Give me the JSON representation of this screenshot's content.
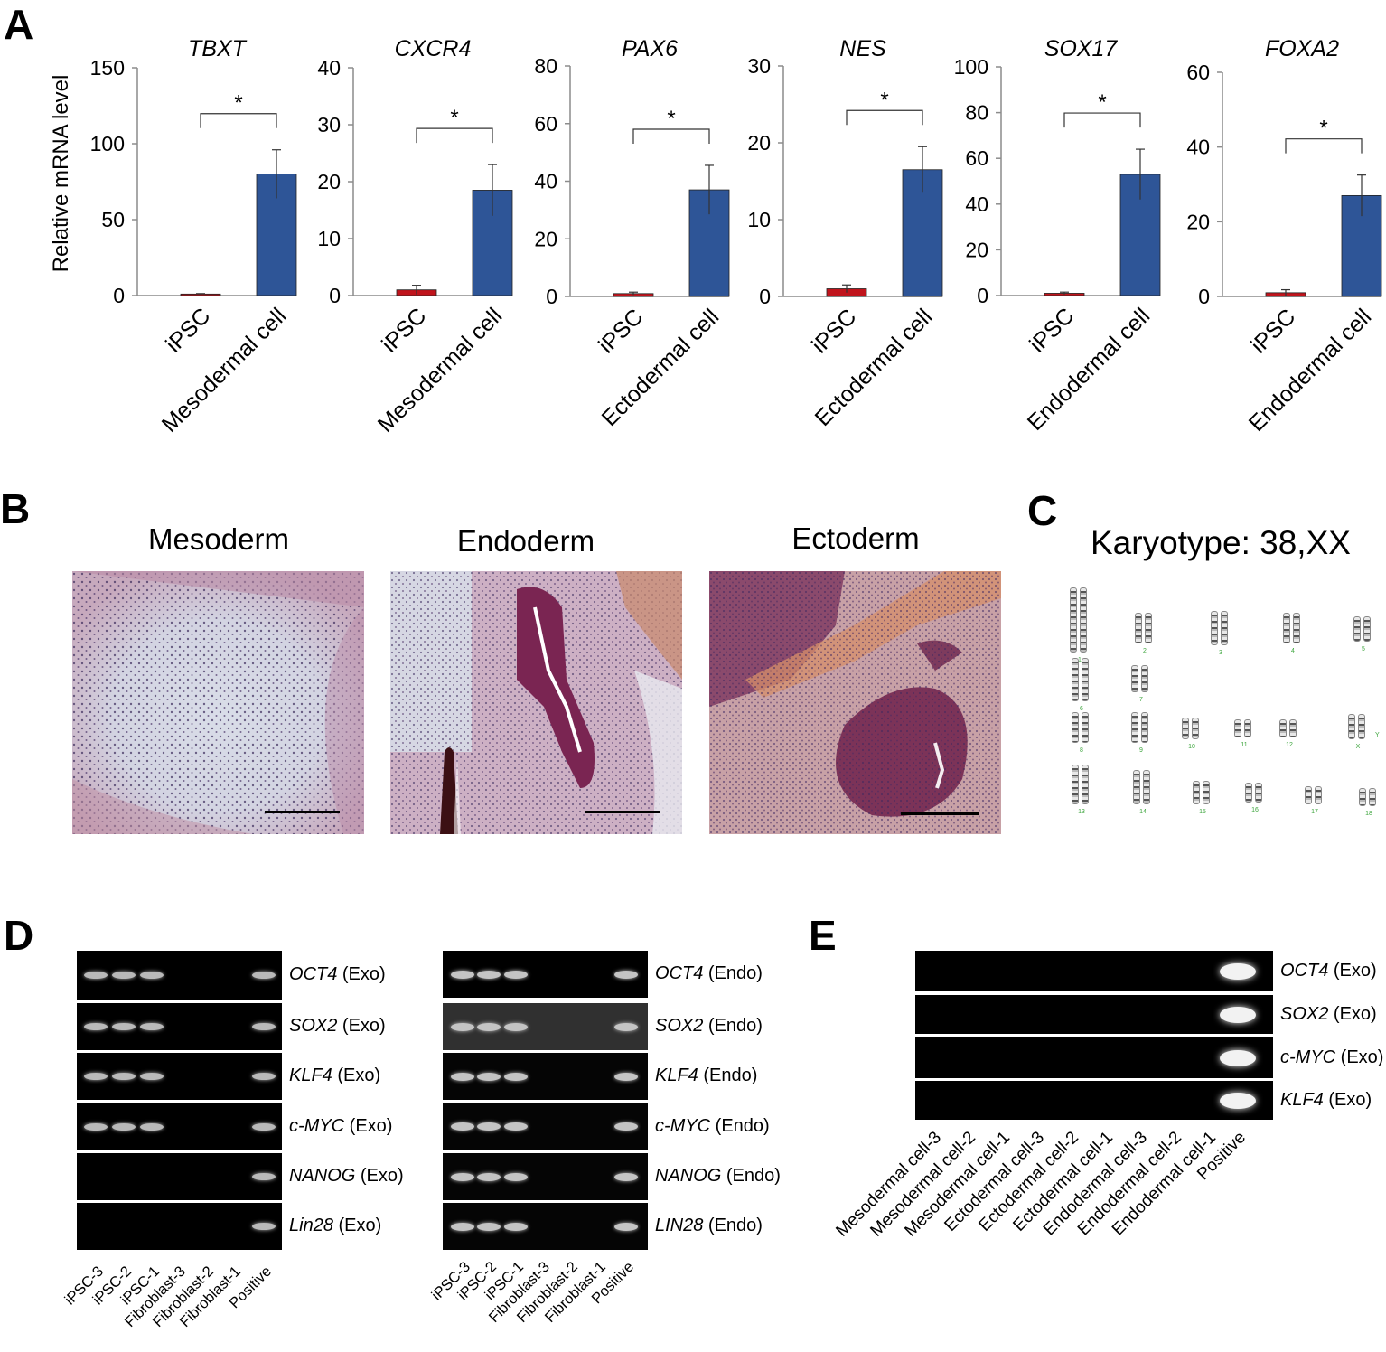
{
  "panels": {
    "a": "A",
    "b": "B",
    "c": "C",
    "d": "D",
    "e": "E"
  },
  "panel_a": {
    "ylabel": "Relative mRNA level",
    "significance": "*",
    "colors": {
      "ipsc": "#c0141c",
      "diff": "#2e5597"
    }
  },
  "chart_data": [
    {
      "type": "bar",
      "title": "TBXT",
      "categories": [
        "iPSC",
        "Mesodermal cell"
      ],
      "values": [
        1,
        80
      ],
      "errors": [
        0.3,
        16
      ],
      "ylim": [
        0,
        150
      ],
      "yticks": [
        0,
        50,
        100,
        150
      ]
    },
    {
      "type": "bar",
      "title": "CXCR4",
      "categories": [
        "iPSC",
        "Mesodermal cell"
      ],
      "values": [
        1,
        18.5
      ],
      "errors": [
        0.8,
        4.5
      ],
      "ylim": [
        0,
        40
      ],
      "yticks": [
        0,
        10,
        20,
        30,
        40
      ]
    },
    {
      "type": "bar",
      "title": "PAX6",
      "categories": [
        "iPSC",
        "Ectodermal cell"
      ],
      "values": [
        1,
        37
      ],
      "errors": [
        0.5,
        8.5
      ],
      "ylim": [
        0,
        80
      ],
      "yticks": [
        0,
        20,
        40,
        60,
        80
      ]
    },
    {
      "type": "bar",
      "title": "NES",
      "categories": [
        "iPSC",
        "Ectodermal cell"
      ],
      "values": [
        1,
        16.5
      ],
      "errors": [
        0.5,
        3
      ],
      "ylim": [
        0,
        30
      ],
      "yticks": [
        0,
        10,
        20,
        30
      ]
    },
    {
      "type": "bar",
      "title": "SOX17",
      "categories": [
        "iPSC",
        "Endodermal cell"
      ],
      "values": [
        1,
        53
      ],
      "errors": [
        0.5,
        11
      ],
      "ylim": [
        0,
        100
      ],
      "yticks": [
        0,
        20,
        40,
        60,
        80,
        100
      ]
    },
    {
      "type": "bar",
      "title": "FOXA2",
      "categories": [
        "iPSC",
        "Endodermal cell"
      ],
      "values": [
        1,
        27
      ],
      "errors": [
        0.8,
        5.5
      ],
      "ylim": [
        0,
        60
      ],
      "yticks": [
        0,
        20,
        40,
        60
      ]
    }
  ],
  "panel_b": {
    "titles": [
      "Mesoderm",
      "Endoderm",
      "Ectoderm"
    ]
  },
  "panel_c": {
    "title": "Karyotype: 38,XX",
    "chromosome_labels": [
      "1",
      "2",
      "3",
      "4",
      "5",
      "6",
      "7",
      "8",
      "9",
      "10",
      "11",
      "12",
      "X",
      "Y",
      "13",
      "14",
      "15",
      "16",
      "17",
      "18"
    ]
  },
  "panel_d": {
    "left": {
      "rows": [
        {
          "gene": "OCT4",
          "suffix": " (Exo)",
          "bands": [
            1,
            1,
            1,
            0,
            0,
            0,
            1
          ]
        },
        {
          "gene": "SOX2",
          "suffix": " (Exo)",
          "bands": [
            1,
            1,
            1,
            0,
            0,
            0,
            1
          ]
        },
        {
          "gene": "KLF4",
          "suffix": " (Exo)",
          "bands": [
            1,
            1,
            1,
            0,
            0,
            0,
            1
          ]
        },
        {
          "gene": "c-MYC",
          "suffix": " (Exo)",
          "bands": [
            1,
            1,
            1,
            0,
            0,
            0,
            1
          ]
        },
        {
          "gene": "NANOG",
          "suffix": " (Exo)",
          "bands": [
            0,
            0,
            0,
            0,
            0,
            0,
            1
          ]
        },
        {
          "gene": "Lin28",
          "suffix": " (Exo)",
          "bands": [
            0,
            0,
            0,
            0,
            0,
            0,
            1
          ]
        }
      ],
      "lanes": [
        "iPSC-3",
        "iPSC-2",
        "iPSC-1",
        "Fibroblast-3",
        "Fibroblast-2",
        "Fibroblast-1",
        "Positive"
      ]
    },
    "right": {
      "rows": [
        {
          "gene": "OCT4",
          "suffix": " (Endo)",
          "bands": [
            1,
            1,
            1,
            0,
            0,
            0,
            1
          ]
        },
        {
          "gene": "SOX2",
          "suffix": " (Endo)",
          "bands": [
            1,
            1,
            1,
            0,
            0,
            0,
            1
          ]
        },
        {
          "gene": "KLF4",
          "suffix": " (Endo)",
          "bands": [
            1,
            1,
            1,
            0,
            0,
            0,
            1
          ]
        },
        {
          "gene": "c-MYC",
          "suffix": " (Endo)",
          "bands": [
            1,
            1,
            1,
            0,
            0,
            0,
            1
          ]
        },
        {
          "gene": "NANOG",
          "suffix": " (Endo)",
          "bands": [
            1,
            1,
            1,
            0,
            0,
            0,
            1
          ]
        },
        {
          "gene": "LIN28",
          "suffix": " (Endo)",
          "bands": [
            1,
            1,
            1,
            0,
            0,
            0,
            1
          ]
        }
      ],
      "lanes": [
        "iPSC-3",
        "iPSC-2",
        "iPSC-1",
        "Fibroblast-3",
        "Fibroblast-2",
        "Fibroblast-1",
        "Positive"
      ]
    }
  },
  "panel_e": {
    "rows": [
      {
        "gene": "OCT4",
        "suffix": " (Exo)"
      },
      {
        "gene": "SOX2",
        "suffix": " (Exo)"
      },
      {
        "gene": "c-MYC",
        "suffix": " (Exo)"
      },
      {
        "gene": "KLF4",
        "suffix": " (Exo)"
      }
    ],
    "lanes": [
      "Mesodermal cell-3",
      "Mesodermal cell-2",
      "Mesodermal cell-1",
      "Ectodermal cell-3",
      "Ectodermal cell-2",
      "Ectodermal cell-1",
      "Endodermal cell-3",
      "Endodermal cell-2",
      "Endodermal cell-1",
      "Positive"
    ]
  }
}
